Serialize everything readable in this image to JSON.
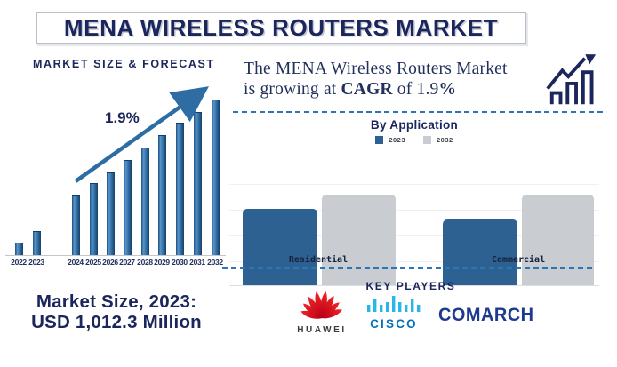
{
  "banner": {
    "title": "MENA WIRELESS ROUTERS MARKET"
  },
  "statement": {
    "line1": "The MENA Wireless Routers Market",
    "line2_prefix": "is growing at ",
    "cagr": "CAGR",
    "line2_middle": " of 1.9",
    "line2_percent": "%"
  },
  "icons": {
    "growth_trend": "bar-chart-with-rising-arrow",
    "huawei_logo": "huawei-red-flower",
    "cisco_logo": "cisco-cyan-bars"
  },
  "market_size": {
    "line1": "Market Size, 2023:",
    "line2": "USD 1,012.3 Million"
  },
  "key_players": {
    "heading": "KEY PLAYERS",
    "players": [
      "HUAWEI",
      "CISCO",
      "COMARCH"
    ]
  },
  "colors": {
    "navy": "#1b265c",
    "steel_blue": "#2e6da4",
    "app_bar_blue": "#2c6191",
    "app_bar_gray": "#c9cdd1",
    "dashed_blue": "#2e75b6",
    "huawei_red": "#e2001a",
    "cisco_cyan": "#29b6e8",
    "comarch_blue": "#1e3a8f"
  },
  "chart_data": [
    {
      "type": "bar",
      "title": "MARKET SIZE & FORECAST",
      "categories": [
        "2022",
        "2023",
        "2024",
        "2025",
        "2026",
        "2027",
        "2028",
        "2029",
        "2030",
        "2031",
        "2032"
      ],
      "values": [
        7.5,
        15,
        38,
        46,
        53,
        61,
        69,
        77,
        85,
        92,
        100
      ],
      "units": "relative height (no y-axis shown)",
      "annotation": "1.9%",
      "known_point": "2023 = USD 1,012.3 Million",
      "grid": false,
      "legend_position": "none"
    },
    {
      "type": "bar",
      "title": "By Application",
      "categories": [
        "Residential",
        "Commercial"
      ],
      "series": [
        {
          "name": "2023",
          "values": [
            84,
            73
          ]
        },
        {
          "name": "2032",
          "values": [
            100,
            100
          ]
        }
      ],
      "units": "relative height (no y-axis shown)",
      "grid": true,
      "legend_position": "top"
    }
  ]
}
